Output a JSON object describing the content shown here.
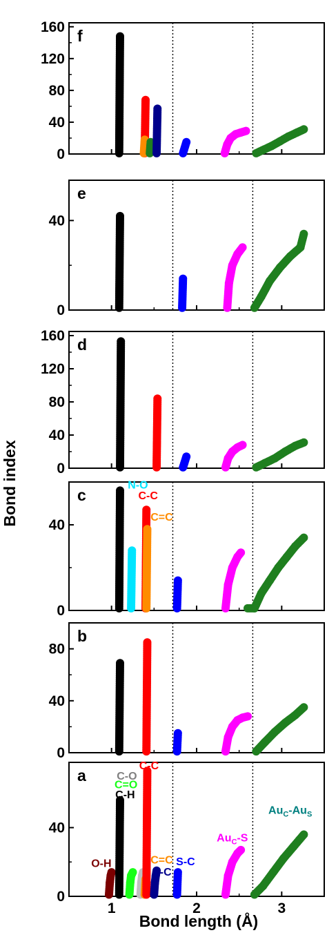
{
  "chart_data": {
    "type": "scatter",
    "xlabel": "Bond length (Å)",
    "ylabel": "Bond index",
    "xlim": [
      0.5,
      3.5
    ],
    "x_ticks": [
      "1",
      "2",
      "3"
    ],
    "reference_lines_x": [
      1.72,
      2.66
    ],
    "colors": {
      "black": "#000000",
      "red": "#ff0000",
      "blue": "#0000ff",
      "navy": "#00008b",
      "magenta": "#ff00ff",
      "green": "#1f7f1f",
      "orange": "#ff8c00",
      "cyan": "#00e5ff",
      "brown": "#7b0000",
      "lime": "#19ff19",
      "gray": "#808080",
      "lightgray": "#c0c0c0"
    },
    "panels": [
      {
        "label": "f",
        "ylim": [
          0,
          165
        ],
        "yticks": [
          0,
          40,
          80,
          120,
          160
        ],
        "series": [
          {
            "color": "black",
            "x": [
              1.09,
              1.1
            ],
            "y": [
              1,
              148
            ]
          },
          {
            "color": "red",
            "x": [
              1.39,
              1.4
            ],
            "y": [
              1,
              68
            ]
          },
          {
            "color": "orange",
            "x": [
              1.38,
              1.39
            ],
            "y": [
              1,
              18
            ]
          },
          {
            "color": "green",
            "x": [
              1.45,
              1.46
            ],
            "y": [
              1,
              15
            ]
          },
          {
            "color": "navy",
            "x": [
              1.53,
              1.54
            ],
            "y": [
              1,
              57
            ]
          },
          {
            "color": "blue",
            "x": [
              1.84,
              1.88
            ],
            "y": [
              1,
              15
            ]
          },
          {
            "color": "magenta",
            "x": [
              2.33,
              2.36,
              2.4,
              2.46,
              2.52,
              2.58
            ],
            "y": [
              1,
              12,
              20,
              25,
              27,
              29
            ]
          },
          {
            "color": "green",
            "x": [
              2.7,
              2.78,
              2.88,
              2.98,
              3.08,
              3.18,
              3.26
            ],
            "y": [
              1,
              5,
              10,
              16,
              22,
              27,
              31
            ]
          }
        ]
      },
      {
        "label": "e",
        "ylim": [
          0,
          58
        ],
        "yticks": [
          0,
          40
        ],
        "series": [
          {
            "color": "black",
            "x": [
              1.09,
              1.1
            ],
            "y": [
              1,
              42
            ]
          },
          {
            "color": "blue",
            "x": [
              1.83,
              1.84
            ],
            "y": [
              1,
              14
            ]
          },
          {
            "color": "magenta",
            "x": [
              2.36,
              2.38,
              2.42,
              2.48,
              2.54
            ],
            "y": [
              1,
              12,
              20,
              25,
              28
            ]
          },
          {
            "color": "green",
            "x": [
              2.68,
              2.76,
              2.86,
              2.98,
              3.1,
              3.22,
              3.26
            ],
            "y": [
              1,
              6,
              13,
              19,
              24,
              28,
              34
            ]
          }
        ]
      },
      {
        "label": "d",
        "ylim": [
          0,
          165
        ],
        "yticks": [
          0,
          40,
          80,
          120,
          160
        ],
        "series": [
          {
            "color": "black",
            "x": [
              1.1,
              1.11
            ],
            "y": [
              1,
              153
            ]
          },
          {
            "color": "red",
            "x": [
              1.53,
              1.54
            ],
            "y": [
              1,
              84
            ]
          },
          {
            "color": "blue",
            "x": [
              1.84,
              1.88
            ],
            "y": [
              1,
              14
            ]
          },
          {
            "color": "magenta",
            "x": [
              2.34,
              2.37,
              2.42,
              2.48,
              2.54
            ],
            "y": [
              1,
              12,
              20,
              25,
              28
            ]
          },
          {
            "color": "green",
            "x": [
              2.7,
              2.8,
              2.92,
              3.04,
              3.16,
              3.26
            ],
            "y": [
              1,
              6,
              12,
              20,
              27,
              31
            ]
          }
        ]
      },
      {
        "label": "c",
        "ylim": [
          0,
          60
        ],
        "yticks": [
          0,
          40
        ],
        "series": [
          {
            "color": "black",
            "x": [
              1.09,
              1.1
            ],
            "y": [
              1,
              56
            ]
          },
          {
            "color": "cyan",
            "x": [
              1.23,
              1.24
            ],
            "y": [
              1,
              28
            ]
          },
          {
            "color": "red",
            "x": [
              1.4,
              1.41
            ],
            "y": [
              1,
              47
            ]
          },
          {
            "color": "orange",
            "x": [
              1.41,
              1.42
            ],
            "y": [
              1,
              38
            ]
          },
          {
            "color": "blue",
            "x": [
              1.77,
              1.78
            ],
            "y": [
              1,
              14
            ]
          },
          {
            "color": "magenta",
            "x": [
              2.34,
              2.37,
              2.42,
              2.48,
              2.52
            ],
            "y": [
              1,
              12,
              20,
              25,
              27
            ]
          },
          {
            "color": "green",
            "x": [
              2.6,
              2.68,
              2.76,
              2.86,
              2.96,
              3.06,
              3.16,
              3.26
            ],
            "y": [
              1,
              1,
              8,
              14,
              20,
              25,
              30,
              34
            ]
          }
        ]
      },
      {
        "label": "b",
        "ylim": [
          0,
          100
        ],
        "yticks": [
          0,
          40,
          80
        ],
        "series": [
          {
            "color": "black",
            "x": [
              1.09,
              1.1
            ],
            "y": [
              1,
              69
            ]
          },
          {
            "color": "red",
            "x": [
              1.41,
              1.42
            ],
            "y": [
              1,
              85
            ]
          },
          {
            "color": "blue",
            "x": [
              1.77,
              1.78
            ],
            "y": [
              1,
              15
            ]
          },
          {
            "color": "magenta",
            "x": [
              2.34,
              2.37,
              2.42,
              2.48,
              2.54,
              2.6
            ],
            "y": [
              1,
              12,
              20,
              25,
              27,
              28
            ]
          },
          {
            "color": "green",
            "x": [
              2.7,
              2.8,
              2.92,
              3.04,
              3.16,
              3.26
            ],
            "y": [
              1,
              8,
              16,
              23,
              29,
              35
            ]
          }
        ]
      },
      {
        "label": "a",
        "ylim": [
          0,
          78
        ],
        "yticks": [
          0,
          40
        ],
        "series": [
          {
            "color": "brown",
            "x": [
              0.97,
              0.98,
              0.99,
              1.0
            ],
            "y": [
              1,
              8,
              12,
              14
            ]
          },
          {
            "color": "black",
            "x": [
              1.09,
              1.1
            ],
            "y": [
              1,
              56
            ]
          },
          {
            "color": "lime",
            "x": [
              1.21,
              1.22,
              1.23,
              1.24,
              1.25
            ],
            "y": [
              1,
              8,
              12,
              13,
              14
            ]
          },
          {
            "color": "lightgray",
            "x": [
              1.34,
              1.35,
              1.36,
              1.37
            ],
            "y": [
              1,
              8,
              12,
              14
            ]
          },
          {
            "color": "orange",
            "x": [
              1.39,
              1.4
            ],
            "y": [
              1,
              10
            ]
          },
          {
            "color": "red",
            "x": [
              1.41,
              1.42
            ],
            "y": [
              1,
              73
            ]
          },
          {
            "color": "navy",
            "x": [
              1.5,
              1.51,
              1.52,
              1.53
            ],
            "y": [
              1,
              8,
              12,
              15
            ]
          },
          {
            "color": "blue",
            "x": [
              1.77,
              1.78
            ],
            "y": [
              1,
              14
            ]
          },
          {
            "color": "magenta",
            "x": [
              2.34,
              2.37,
              2.42,
              2.48,
              2.52
            ],
            "y": [
              1,
              12,
              20,
              25,
              27
            ]
          },
          {
            "color": "green",
            "x": [
              2.68,
              2.78,
              2.9,
              3.02,
              3.14,
              3.26
            ],
            "y": [
              1,
              6,
              14,
              22,
              29,
              36
            ]
          }
        ],
        "annotations": [
          {
            "text": "O-H",
            "color": "brown",
            "x": 0.88,
            "y": 17
          },
          {
            "text": "C-O",
            "color": "gray",
            "x": 1.18,
            "y": 68
          },
          {
            "text": "C=O",
            "color": "lime",
            "x": 1.17,
            "y": 63
          },
          {
            "text": "C-H",
            "color": "black",
            "x": 1.16,
            "y": 57
          },
          {
            "text": "C-C",
            "color": "red",
            "x": 1.44,
            "y": 74
          },
          {
            "text": "C=C",
            "color": "orange",
            "x": 1.59,
            "y": 19
          },
          {
            "text": "C-C",
            "color": "navy",
            "x": 1.59,
            "y": 12
          },
          {
            "text": "S-C",
            "color": "blue",
            "x": 1.87,
            "y": 18
          },
          {
            "text": "Au",
            "sub": "C",
            "tail": "-S",
            "color": "magenta",
            "x": 2.42,
            "y": 32
          },
          {
            "text": "Au",
            "sub": "C",
            "tail": "-Au",
            "sub2": "S",
            "color": "teal",
            "x": 3.1,
            "y": 48
          }
        ]
      }
    ],
    "top_annotations": [
      {
        "panel": "c",
        "text": "N-O",
        "color": "cyan",
        "x": 1.31,
        "y": 57
      },
      {
        "panel": "c",
        "text": "C-C",
        "color": "red",
        "x": 1.43,
        "y": 52
      },
      {
        "panel": "c",
        "text": "C=C",
        "color": "orange",
        "x": 1.59,
        "y": 42
      }
    ]
  }
}
